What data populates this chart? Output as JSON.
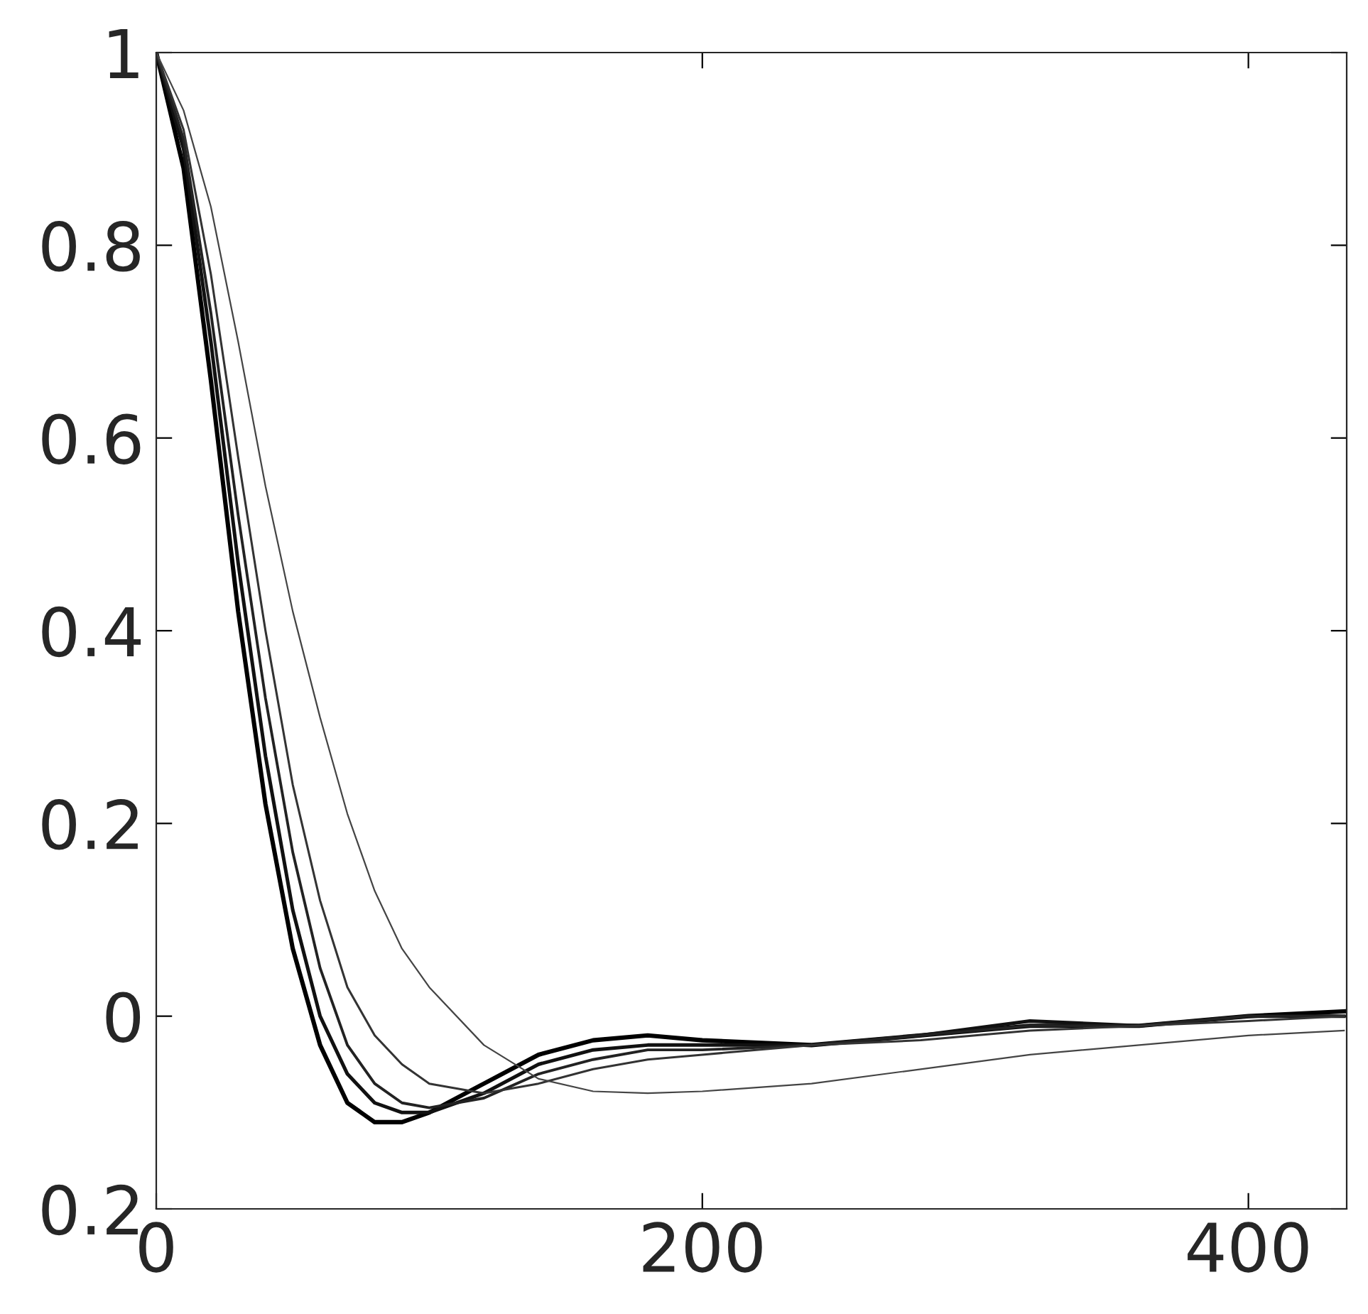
{
  "chart_data": {
    "type": "line",
    "x": [
      0,
      10,
      20,
      30,
      40,
      50,
      60,
      70,
      80,
      90,
      100,
      120,
      140,
      160,
      180,
      200,
      240,
      280,
      320,
      360,
      400,
      435
    ],
    "series": [
      {
        "color": "#000000",
        "values": [
          1,
          0.88,
          0.66,
          0.42,
          0.22,
          0.07,
          -0.03,
          -0.09,
          -0.11,
          -0.11,
          -0.1,
          -0.07,
          -0.04,
          -0.025,
          -0.02,
          -0.025,
          -0.03,
          -0.02,
          -0.01,
          -0.01,
          0.0,
          0.005
        ]
      },
      {
        "color": "#111111",
        "values": [
          1,
          0.9,
          0.7,
          0.47,
          0.27,
          0.11,
          0.0,
          -0.06,
          -0.09,
          -0.1,
          -0.1,
          -0.08,
          -0.05,
          -0.035,
          -0.03,
          -0.03,
          -0.03,
          -0.02,
          -0.005,
          -0.01,
          0.0,
          0.0
        ]
      },
      {
        "color": "#222222",
        "values": [
          1,
          0.91,
          0.73,
          0.52,
          0.33,
          0.17,
          0.05,
          -0.03,
          -0.07,
          -0.09,
          -0.095,
          -0.085,
          -0.06,
          -0.045,
          -0.035,
          -0.035,
          -0.03,
          -0.02,
          -0.01,
          -0.01,
          0.0,
          0.0
        ]
      },
      {
        "color": "#333333",
        "values": [
          1,
          0.92,
          0.77,
          0.58,
          0.4,
          0.24,
          0.12,
          0.03,
          -0.02,
          -0.05,
          -0.07,
          -0.08,
          -0.07,
          -0.055,
          -0.045,
          -0.04,
          -0.03,
          -0.025,
          -0.015,
          -0.01,
          -0.005,
          0.0
        ]
      },
      {
        "color": "#444444",
        "values": [
          1,
          0.94,
          0.84,
          0.7,
          0.55,
          0.42,
          0.31,
          0.21,
          0.13,
          0.07,
          0.03,
          -0.03,
          -0.065,
          -0.078,
          -0.08,
          -0.078,
          -0.07,
          -0.055,
          -0.04,
          -0.03,
          -0.02,
          -0.015
        ]
      }
    ],
    "xlim": [
      0,
      436
    ],
    "xticks": [
      0,
      200,
      400
    ],
    "ylim": [
      -0.2,
      1
    ],
    "yticks": [
      {
        "value": -0.2,
        "label": "0.2"
      },
      0,
      0.2,
      0.4,
      0.6,
      0.8,
      1
    ],
    "grid": false,
    "legend": false,
    "marker": "none",
    "line_style": "solid"
  }
}
